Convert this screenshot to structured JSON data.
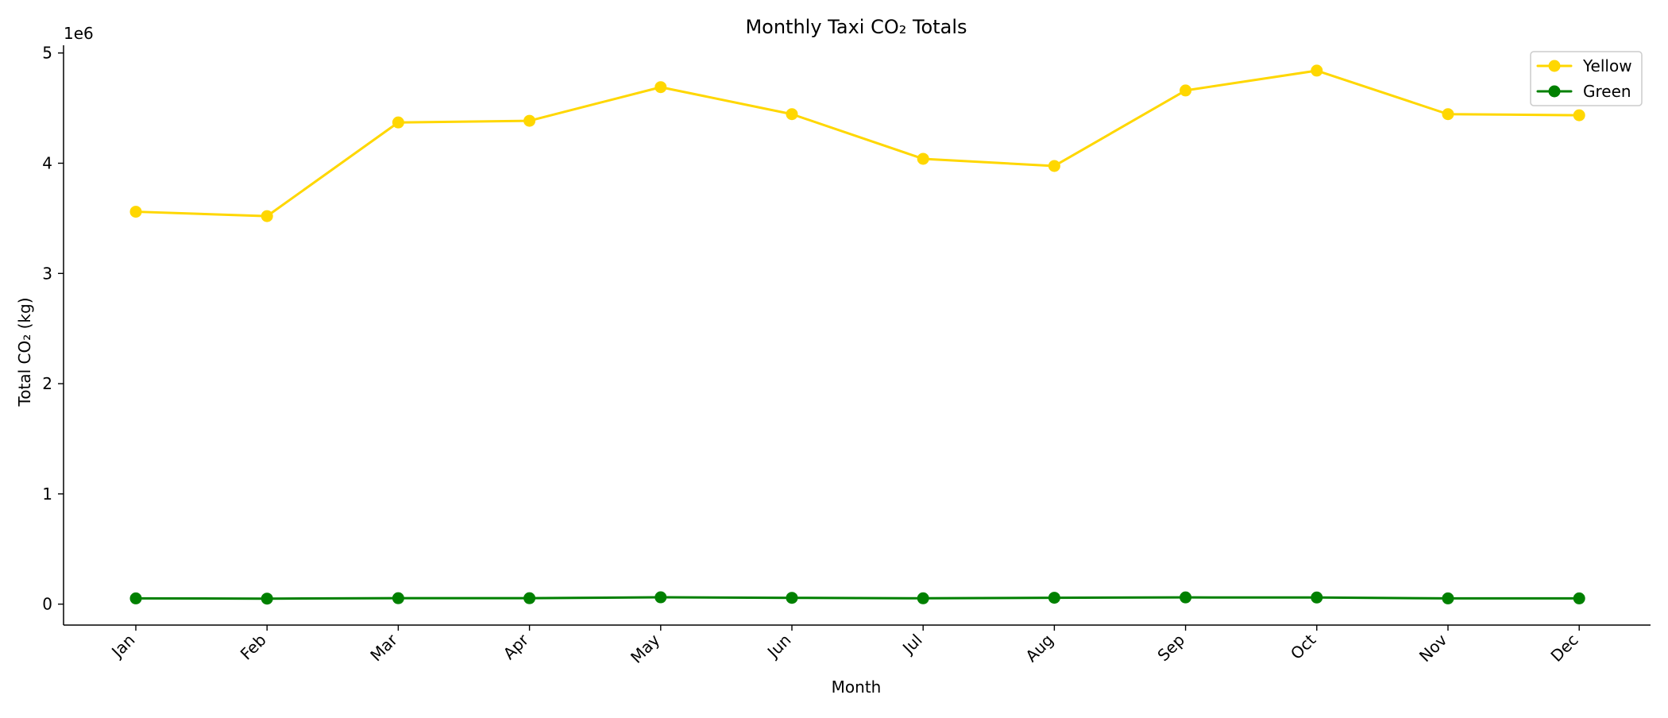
{
  "chart_data": {
    "type": "line",
    "title": "Monthly Taxi CO₂ Totals",
    "xlabel": "Month",
    "ylabel": "Total CO₂ (kg)",
    "y_offset_label": "1e6",
    "categories": [
      "Jan",
      "Feb",
      "Mar",
      "Apr",
      "May",
      "Jun",
      "Jul",
      "Aug",
      "Sep",
      "Oct",
      "Nov",
      "Dec"
    ],
    "series": [
      {
        "name": "Yellow",
        "color": "#FFD700",
        "values": [
          3560000,
          3520000,
          4370000,
          4385000,
          4690000,
          4445000,
          4040000,
          3975000,
          4660000,
          4840000,
          4445000,
          4435000
        ]
      },
      {
        "name": "Green",
        "color": "#008000",
        "values": [
          52000,
          50000,
          54000,
          54000,
          62000,
          57000,
          53000,
          58000,
          61000,
          60000,
          52000,
          52000
        ]
      }
    ],
    "ylim": [
      -190000,
      5070000
    ],
    "yticks": [
      0,
      1000000,
      2000000,
      3000000,
      4000000,
      5000000
    ],
    "ytick_labels": [
      "0",
      "1",
      "2",
      "3",
      "4",
      "5"
    ],
    "grid": false,
    "legend_position": "top-right"
  }
}
